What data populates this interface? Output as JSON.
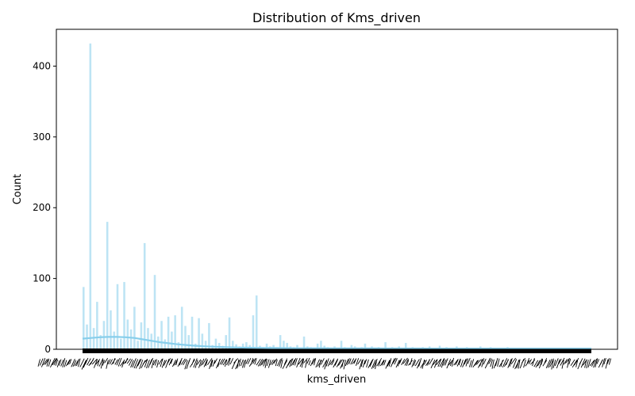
{
  "chart_data": {
    "type": "bar",
    "title": "Distribution of Kms_driven",
    "xlabel": "kms_driven",
    "ylabel": "Count",
    "ylim": [
      0,
      452
    ],
    "yticks": [
      0,
      100,
      200,
      300,
      400
    ],
    "grid": false,
    "bar_color": "#87ceeb",
    "kde_color": "#87ceeb",
    "x_tick_label_color": "#000000",
    "series": [
      {
        "values": [
          88,
          35,
          432,
          30,
          67,
          20,
          40,
          180,
          55,
          25,
          92,
          15,
          95,
          42,
          28,
          60,
          12,
          38,
          150,
          30,
          22,
          105,
          18,
          40,
          14,
          46,
          25,
          48,
          10,
          60,
          33,
          20,
          46,
          8,
          44,
          22,
          12,
          37,
          6,
          15,
          9,
          5,
          20,
          45,
          12,
          7,
          4,
          8,
          10,
          6,
          48,
          76,
          5,
          3,
          8,
          4,
          6,
          3,
          20,
          12,
          9,
          4,
          3,
          6,
          2,
          18,
          4,
          3,
          2,
          8,
          12,
          5,
          3,
          2,
          4,
          2,
          12,
          3,
          2,
          6,
          4,
          2,
          3,
          8,
          2,
          4,
          2,
          3,
          2,
          10,
          2,
          3,
          2,
          4,
          2,
          9,
          2,
          3,
          2,
          2,
          3,
          2,
          4,
          2,
          2,
          5,
          2,
          3,
          2,
          2,
          4,
          2,
          2,
          3,
          2,
          2,
          2,
          4,
          2,
          2,
          3,
          2,
          2,
          2,
          2,
          3,
          2,
          2,
          2,
          2,
          2,
          2,
          2,
          2,
          2,
          2,
          2,
          2,
          2,
          2,
          2,
          2,
          2,
          2,
          2,
          2,
          2,
          2,
          2,
          2
        ],
        "kde": [
          15,
          16,
          17,
          17.5,
          17.5,
          17,
          16,
          14,
          12,
          10,
          8.5,
          7,
          6,
          5,
          4.3,
          3.7,
          3.2,
          2.8,
          2.5,
          2.2,
          2,
          1.9,
          1.8,
          1.7,
          1.6,
          1.5,
          1.5,
          1.4,
          1.4,
          1.3,
          1.3,
          1.3,
          1.2,
          1.2,
          1.2,
          1.1,
          1.1,
          1.1,
          1.1,
          1.1,
          1,
          1,
          1,
          1,
          1,
          1,
          1,
          1,
          1,
          1,
          1,
          1,
          1,
          1,
          1,
          1,
          1,
          1,
          1,
          1
        ]
      }
    ]
  }
}
